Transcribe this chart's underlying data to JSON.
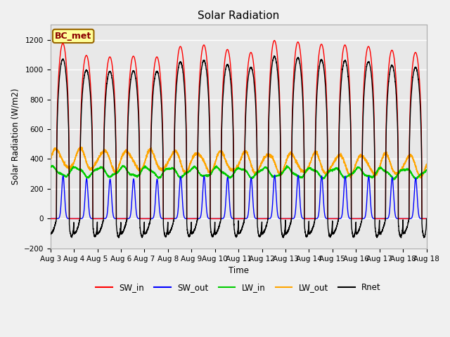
{
  "title": "Solar Radiation",
  "ylabel": "Solar Radiation (W/m2)",
  "xlabel": "Time",
  "ylim": [
    -200,
    1300
  ],
  "yticks": [
    -200,
    0,
    200,
    400,
    600,
    800,
    1000,
    1200
  ],
  "xlim": [
    0,
    16
  ],
  "n_days": 16,
  "annotation": "BC_met",
  "legend": [
    "SW_in",
    "SW_out",
    "LW_in",
    "LW_out",
    "Rnet"
  ],
  "colors": {
    "SW_in": "#ff0000",
    "SW_out": "#0000ff",
    "LW_in": "#00cc00",
    "LW_out": "#ffa500",
    "Rnet": "#000000"
  },
  "SW_in_peaks": [
    1175,
    1095,
    1085,
    1090,
    1085,
    1155,
    1165,
    1135,
    1115,
    1195,
    1185,
    1170,
    1165,
    1155,
    1130,
    1115
  ],
  "xtick_labels": [
    "Aug 3",
    "Aug 4",
    "Aug 5",
    "Aug 6",
    "Aug 7",
    "Aug 8",
    "Aug 9",
    "Aug 10",
    "Aug 11",
    "Aug 12",
    "Aug 13",
    "Aug 14",
    "Aug 15",
    "Aug 16",
    "Aug 17",
    "Aug 18"
  ],
  "figsize": [
    6.4,
    4.8
  ],
  "dpi": 100
}
